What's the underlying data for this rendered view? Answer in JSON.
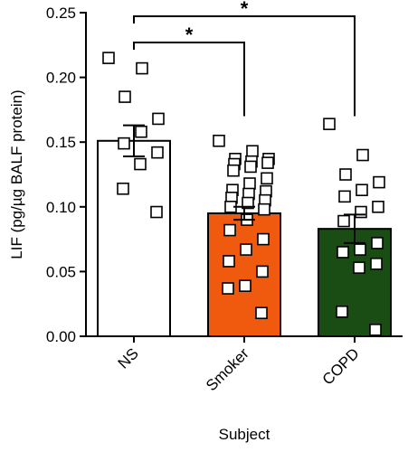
{
  "chart_data": {
    "type": "bar",
    "x_label": "Subject",
    "y_label": "LIF (pg/µg BALF protein)",
    "categories": [
      "NS",
      "Smoker",
      "COPD"
    ],
    "values": [
      0.151,
      0.095,
      0.083
    ],
    "errors": [
      0.012,
      0.005,
      0.011
    ],
    "colors": [
      "#ffffff",
      "#f05a0f",
      "#1a4d14"
    ],
    "points": [
      [
        0.215,
        0.207,
        0.185,
        0.168,
        0.158,
        0.149,
        0.142,
        0.133,
        0.114,
        0.096
      ],
      [
        0.151,
        0.143,
        0.137,
        0.137,
        0.135,
        0.133,
        0.134,
        0.131,
        0.128,
        0.122,
        0.118,
        0.113,
        0.112,
        0.11,
        0.107,
        0.105,
        0.103,
        0.1,
        0.098,
        0.09,
        0.082,
        0.075,
        0.067,
        0.058,
        0.05,
        0.039,
        0.037,
        0.018
      ],
      [
        0.164,
        0.14,
        0.125,
        0.119,
        0.113,
        0.108,
        0.1,
        0.096,
        0.089,
        0.072,
        0.067,
        0.065,
        0.056,
        0.053,
        0.019,
        0.005
      ]
    ],
    "comparisons": [
      {
        "groups": [
          "NS",
          "Smoker"
        ],
        "label": "*"
      },
      {
        "groups": [
          "NS",
          "COPD"
        ],
        "label": "*"
      }
    ],
    "ylim": [
      0,
      0.25
    ],
    "yticks": [
      {
        "value": 0,
        "label": "0.00"
      },
      {
        "value": 0.05,
        "label": "0.05"
      },
      {
        "value": 0.1,
        "label": "0.10"
      },
      {
        "value": 0.15,
        "label": "0.15"
      },
      {
        "value": 0.2,
        "label": "0.20"
      },
      {
        "value": 0.25,
        "label": "0.25"
      }
    ]
  }
}
